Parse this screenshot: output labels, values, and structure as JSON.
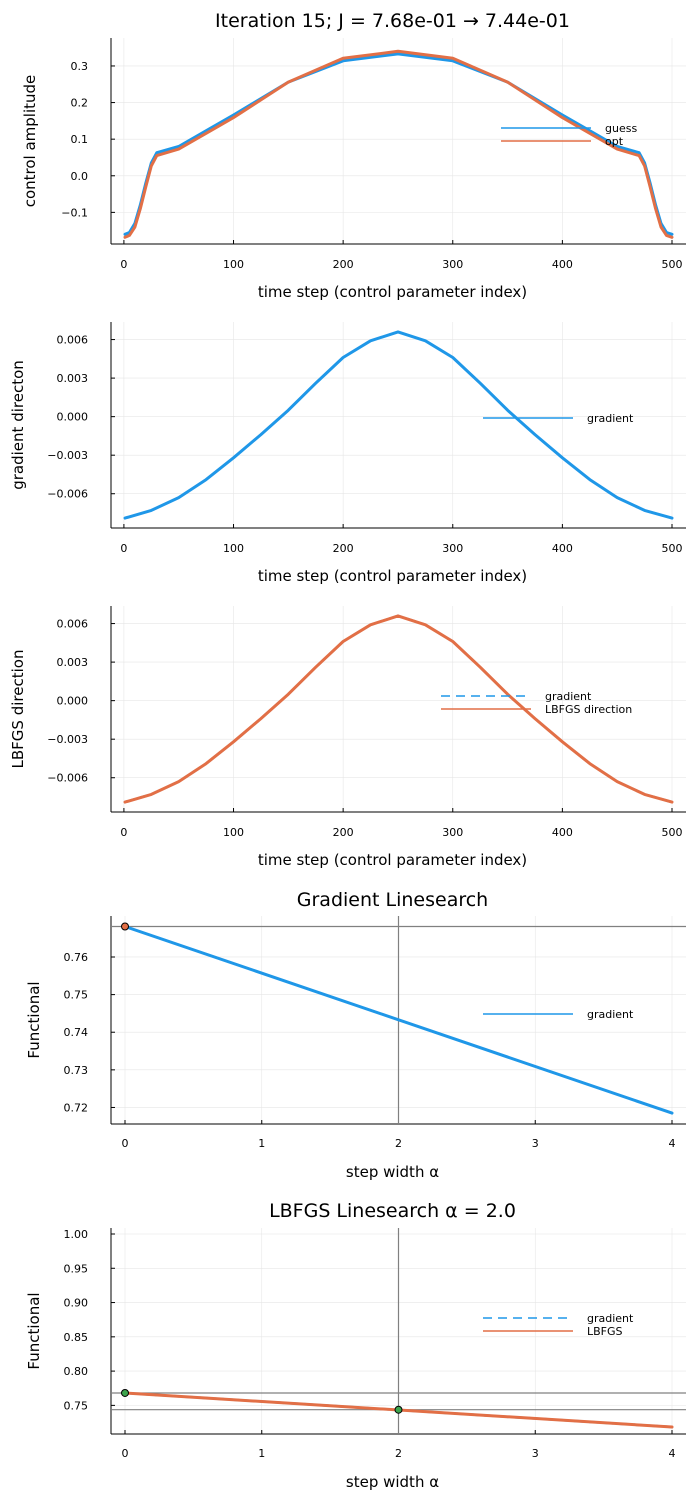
{
  "colors": {
    "blue": "#1f97e8",
    "orange": "#e26f46",
    "green": "#3da44d",
    "axis": "#000000",
    "grid": "#e6e6e6",
    "refline": "#808080"
  },
  "chart_data": [
    {
      "id": "control",
      "type": "line",
      "title": "Iteration 15; J = 7.68e-01 → 7.44e-01",
      "xlabel": "time step (control parameter index)",
      "ylabel": "control amplitude",
      "xlim": [
        1,
        500
      ],
      "ylim": [
        -0.17,
        0.36
      ],
      "xticks": [
        0,
        100,
        200,
        300,
        400,
        500
      ],
      "xtick_labels": [
        "0",
        "100",
        "200",
        "300",
        "400",
        "500"
      ],
      "yticks": [
        -0.1,
        0.0,
        0.1,
        0.2,
        0.3
      ],
      "ytick_labels": [
        "−0.1",
        "0.0",
        "0.1",
        "0.2",
        "0.3"
      ],
      "grid": true,
      "legend_position": "right",
      "series": [
        {
          "name": "guess",
          "color": "#1f97e8",
          "style": "solid",
          "x": [
            1,
            5,
            10,
            15,
            20,
            25,
            30,
            50,
            100,
            150,
            200,
            250,
            300,
            350,
            400,
            450,
            470,
            475,
            480,
            485,
            490,
            495,
            500
          ],
          "y": [
            -0.16,
            -0.155,
            -0.13,
            -0.08,
            -0.02,
            0.035,
            0.063,
            0.08,
            0.166,
            0.256,
            0.314,
            0.333,
            0.314,
            0.256,
            0.166,
            0.08,
            0.063,
            0.035,
            -0.02,
            -0.08,
            -0.13,
            -0.155,
            -0.16
          ]
        },
        {
          "name": "opt",
          "color": "#e26f46",
          "style": "solid",
          "x": [
            1,
            5,
            10,
            15,
            20,
            25,
            30,
            50,
            100,
            150,
            200,
            250,
            300,
            350,
            400,
            450,
            470,
            475,
            480,
            485,
            490,
            495,
            500
          ],
          "y": [
            -0.168,
            -0.163,
            -0.14,
            -0.09,
            -0.03,
            0.027,
            0.055,
            0.073,
            0.159,
            0.256,
            0.321,
            0.34,
            0.321,
            0.256,
            0.159,
            0.073,
            0.055,
            0.027,
            -0.03,
            -0.09,
            -0.14,
            -0.163,
            -0.168
          ]
        }
      ]
    },
    {
      "id": "gradient",
      "type": "line",
      "title": "",
      "xlabel": "time step (control parameter index)",
      "ylabel": "gradient directon",
      "xlim": [
        1,
        500
      ],
      "ylim": [
        -0.0082,
        0.0069
      ],
      "xticks": [
        0,
        100,
        200,
        300,
        400,
        500
      ],
      "xtick_labels": [
        "0",
        "100",
        "200",
        "300",
        "400",
        "500"
      ],
      "yticks": [
        -0.006,
        -0.003,
        0.0,
        0.003,
        0.006
      ],
      "ytick_labels": [
        "−0.006",
        "−0.003",
        "0.000",
        "0.003",
        "0.006"
      ],
      "grid": true,
      "legend_position": "right",
      "series": [
        {
          "name": "gradient",
          "color": "#1f97e8",
          "style": "solid",
          "x": [
            1,
            25,
            50,
            75,
            100,
            125,
            150,
            175,
            200,
            225,
            250,
            275,
            300,
            325,
            350,
            375,
            400,
            425,
            450,
            475,
            500
          ],
          "y": [
            -0.0079,
            -0.0073,
            -0.0063,
            -0.0049,
            -0.0032,
            -0.0014,
            0.0005,
            0.0026,
            0.0046,
            0.0059,
            0.0066,
            0.0059,
            0.0046,
            0.0026,
            0.0005,
            -0.0014,
            -0.0032,
            -0.0049,
            -0.0063,
            -0.0073,
            -0.0079
          ]
        }
      ]
    },
    {
      "id": "lbfgs-direction",
      "type": "line",
      "title": "",
      "xlabel": "time step (control parameter index)",
      "ylabel": "LBFGS direction",
      "xlim": [
        1,
        500
      ],
      "ylim": [
        -0.0082,
        0.0069
      ],
      "xticks": [
        0,
        100,
        200,
        300,
        400,
        500
      ],
      "xtick_labels": [
        "0",
        "100",
        "200",
        "300",
        "400",
        "500"
      ],
      "yticks": [
        -0.006,
        -0.003,
        0.0,
        0.003,
        0.006
      ],
      "ytick_labels": [
        "−0.006",
        "−0.003",
        "0.000",
        "0.003",
        "0.006"
      ],
      "grid": true,
      "legend_position": "right",
      "series": [
        {
          "name": "gradient",
          "color": "#1f97e8",
          "style": "dashed",
          "x": [
            1,
            25,
            50,
            75,
            100,
            125,
            150,
            175,
            200,
            225,
            250,
            275,
            300,
            325,
            350,
            375,
            400,
            425,
            450,
            475,
            500
          ],
          "y": [
            -0.0079,
            -0.0073,
            -0.0063,
            -0.0049,
            -0.0032,
            -0.0014,
            0.0005,
            0.0026,
            0.0046,
            0.0059,
            0.0066,
            0.0059,
            0.0046,
            0.0026,
            0.0005,
            -0.0014,
            -0.0032,
            -0.0049,
            -0.0063,
            -0.0073,
            -0.0079
          ]
        },
        {
          "name": "LBFGS direction",
          "color": "#e26f46",
          "style": "solid",
          "x": [
            1,
            25,
            50,
            75,
            100,
            125,
            150,
            175,
            200,
            225,
            250,
            275,
            300,
            325,
            350,
            375,
            400,
            425,
            450,
            475,
            500
          ],
          "y": [
            -0.0079,
            -0.0073,
            -0.0063,
            -0.0049,
            -0.0032,
            -0.0014,
            0.0005,
            0.0026,
            0.0046,
            0.0059,
            0.0066,
            0.0059,
            0.0046,
            0.0026,
            0.0005,
            -0.0014,
            -0.0032,
            -0.0049,
            -0.0063,
            -0.0073,
            -0.0079
          ]
        }
      ]
    },
    {
      "id": "gradient-linesearch",
      "type": "line",
      "title": "Gradient Linesearch",
      "xlabel": "step width α",
      "ylabel": "Functional",
      "xlim": [
        0,
        4
      ],
      "ylim": [
        0.7172,
        0.7693
      ],
      "xticks": [
        0,
        1,
        2,
        3,
        4
      ],
      "xtick_labels": [
        "0",
        "1",
        "2",
        "3",
        "4"
      ],
      "yticks": [
        0.72,
        0.73,
        0.74,
        0.75,
        0.76
      ],
      "ytick_labels": [
        "0.72",
        "0.73",
        "0.74",
        "0.75",
        "0.76"
      ],
      "grid": true,
      "legend_position": "right",
      "hlines": [
        0.7681
      ],
      "vlines": [
        2
      ],
      "markers": [
        {
          "x": 0,
          "y": 0.7681,
          "color": "#e26f46"
        }
      ],
      "series": [
        {
          "name": "gradient",
          "color": "#1f97e8",
          "style": "solid",
          "x": [
            0,
            4
          ],
          "y": [
            0.7681,
            0.7185
          ]
        }
      ]
    },
    {
      "id": "lbfgs-linesearch",
      "type": "line",
      "title": "LBFGS Linesearch α = 2.0",
      "xlabel": "step width α",
      "ylabel": "Functional",
      "xlim": [
        0,
        4
      ],
      "ylim": [
        0.717,
        1.0
      ],
      "xticks": [
        0,
        1,
        2,
        3,
        4
      ],
      "xtick_labels": [
        "0",
        "1",
        "2",
        "3",
        "4"
      ],
      "yticks": [
        0.75,
        0.8,
        0.85,
        0.9,
        0.95,
        1.0
      ],
      "ytick_labels": [
        "0.75",
        "0.80",
        "0.85",
        "0.90",
        "0.95",
        "1.00"
      ],
      "grid": true,
      "legend_position": "right",
      "hlines": [
        0.7681,
        0.7437
      ],
      "vlines": [
        2
      ],
      "markers": [
        {
          "x": 0,
          "y": 0.7681,
          "color": "#3da44d"
        },
        {
          "x": 2,
          "y": 0.7437,
          "color": "#3da44d"
        }
      ],
      "series": [
        {
          "name": "gradient",
          "color": "#1f97e8",
          "style": "dashed",
          "x": [
            0,
            4
          ],
          "y": [
            0.7681,
            0.7185
          ]
        },
        {
          "name": "LBFGS",
          "color": "#e26f46",
          "style": "solid",
          "x": [
            0,
            4
          ],
          "y": [
            0.7681,
            0.7185
          ]
        }
      ]
    }
  ]
}
